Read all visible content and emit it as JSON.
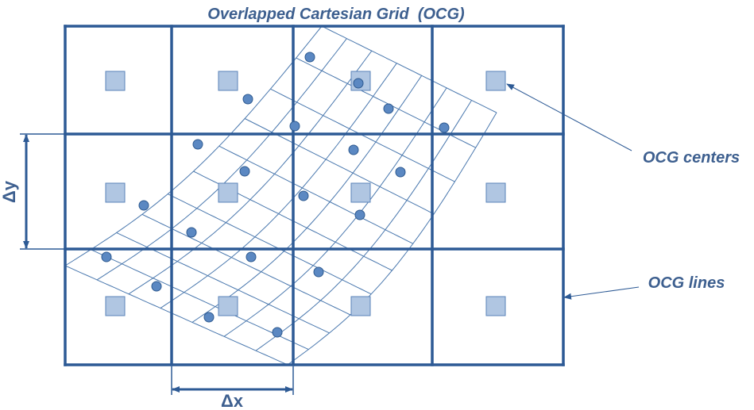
{
  "title": "Overlapped Cartesian Grid  (OCG)",
  "labels": {
    "centers": "OCG centers",
    "lines": "OCG lines",
    "dy": "Δy",
    "dx": "Δx"
  },
  "colors": {
    "grid": "#2d5a95",
    "curvilinear": "#4a78ae",
    "label": "#3d5f8f",
    "center_fill": "#b0c6e2",
    "center_stroke": "#5a83b8",
    "point_fill": "#5b88c2",
    "point_stroke": "#2e5a90"
  },
  "icons": [
    "square-marker-icon",
    "circle-marker-icon",
    "arrow-icon"
  ]
}
